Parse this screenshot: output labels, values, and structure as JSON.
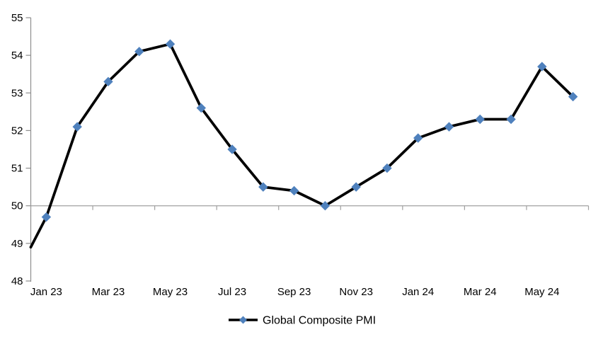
{
  "chart_data": {
    "type": "line",
    "title": "",
    "legend": {
      "label": "Global Composite PMI",
      "position": "bottom-center"
    },
    "y_axis": {
      "min": 48,
      "max": 55,
      "ticks": [
        55,
        54,
        53,
        52,
        51,
        50,
        49,
        48
      ]
    },
    "x_axis": {
      "tick_labels": [
        "Jan 23",
        "Mar 23",
        "May 23",
        "Jul 23",
        "Sep 23",
        "Nov 23",
        "Jan 24",
        "Mar 24",
        "May 24"
      ],
      "labels_every_n_months": 2
    },
    "category_axis_crosses_at": 50,
    "grid": "off",
    "colors": {
      "series_line": "#000000",
      "marker_fill": "#4F81BD",
      "axis_line": "#8E8E8E",
      "reference_line": "#A0A0A0",
      "text": "#000000",
      "background": "#FFFFFF"
    },
    "series": [
      {
        "name": "Global Composite PMI",
        "marker_shape": "diamond",
        "points": [
          {
            "label": "Dec 22",
            "value": 48.9,
            "marker_visible": false,
            "at_axis": true
          },
          {
            "label": "Jan 23",
            "value": 49.7
          },
          {
            "label": "Feb 23",
            "value": 52.1
          },
          {
            "label": "Mar 23",
            "value": 53.3
          },
          {
            "label": "Apr 23",
            "value": 54.1
          },
          {
            "label": "May 23",
            "value": 54.3
          },
          {
            "label": "Jun 23",
            "value": 52.6
          },
          {
            "label": "Jul 23",
            "value": 51.5
          },
          {
            "label": "Aug 23",
            "value": 50.5
          },
          {
            "label": "Sep 23",
            "value": 50.4
          },
          {
            "label": "Oct 23",
            "value": 50.0
          },
          {
            "label": "Nov 23",
            "value": 50.5
          },
          {
            "label": "Dec 23",
            "value": 51.0
          },
          {
            "label": "Jan 24",
            "value": 51.8
          },
          {
            "label": "Feb 24",
            "value": 52.1
          },
          {
            "label": "Mar 24",
            "value": 52.3
          },
          {
            "label": "Apr 24",
            "value": 52.3
          },
          {
            "label": "May 24",
            "value": 53.7
          },
          {
            "label": "Jun 24",
            "value": 52.9
          }
        ]
      }
    ]
  }
}
